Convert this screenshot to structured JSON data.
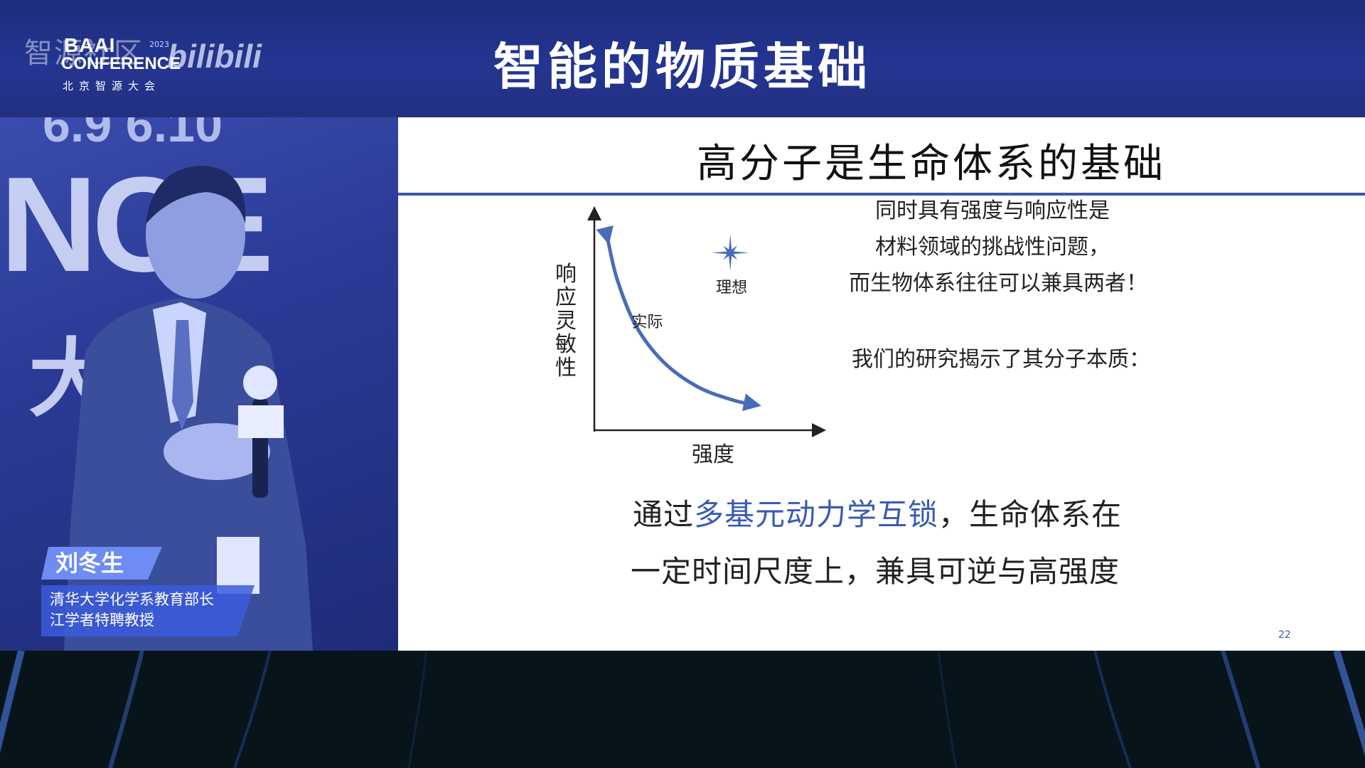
{
  "header": {
    "title": "智能的物质基础",
    "logo_bg_text": "智源社区",
    "logo_baai": "BAAI",
    "logo_conference": "CONFERENCE",
    "logo_subtitle": "北京智源大会",
    "logo_year": "2023",
    "logo_bilibili": "bilibili"
  },
  "video": {
    "background_dates": "6.9 6.10",
    "background_letters": "NCE",
    "background_char": "大",
    "speaker_name": "刘冬生",
    "speaker_title_1": "清华大学化学系教育部长",
    "speaker_title_2": "江学者特聘教授"
  },
  "slide": {
    "title": "高分子是生命体系的基础",
    "y_axis_label_chars": [
      "响",
      "应",
      "灵",
      "敏",
      "性"
    ],
    "x_axis_label": "强度",
    "text_lines": [
      "同时具有强度与响应性是",
      "材料领域的挑战性问题，",
      "而生物体系往往可以兼具两者！",
      "我们的研究揭示了其分子本质："
    ],
    "conclusion_line1_pre": "通过",
    "conclusion_line1_highlight": "多基元动力学互锁",
    "conclusion_line1_post": "，生命体系在",
    "conclusion_line2": "一定时间尺度上，兼具可逆与高强度",
    "page_number": "22",
    "colors": {
      "accent": "#3a5bb3",
      "rule": "#3a58a8"
    }
  },
  "chart_data": {
    "type": "line",
    "title": "",
    "xlabel": "强度",
    "ylabel": "响应灵敏性",
    "xlim": [
      0,
      10
    ],
    "ylim": [
      0,
      10
    ],
    "series": [
      {
        "name": "实际",
        "x": [
          0.6,
          1.0,
          1.8,
          3.0,
          4.5,
          6.1,
          7.1
        ],
        "y": [
          8.3,
          6.6,
          4.6,
          3.0,
          1.9,
          1.3,
          1.1
        ]
      }
    ],
    "points": [
      {
        "label": "理想",
        "x": 5.9,
        "y": 7.8
      }
    ],
    "annotations": [
      "实际",
      "理想"
    ]
  }
}
